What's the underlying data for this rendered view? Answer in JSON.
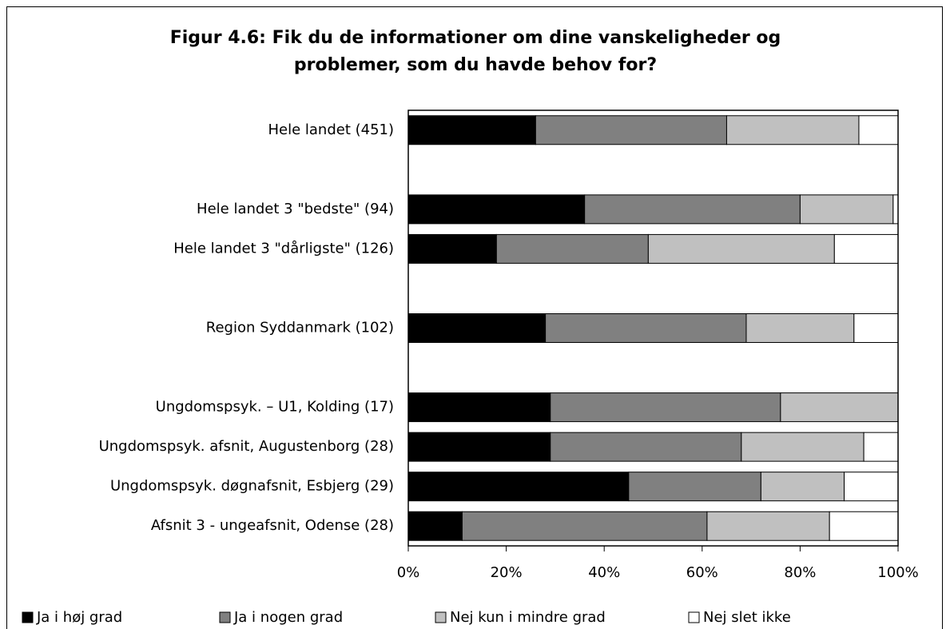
{
  "chart_data": {
    "type": "stacked-barh",
    "title": "Figur 4.6: Fik du de informationer om dine vanskeligheder og problemer, som du havde behov for?",
    "categories": [
      "Hele landet  (451)",
      null,
      "Hele landet 3 \"bedste\" (94)",
      "Hele landet 3 \"dårligste\" (126)",
      null,
      "Region Syddanmark (102)",
      null,
      "Ungdomspsyk. – U1, Kolding (17)",
      "Ungdomspsyk. afsnit, Augustenborg (28)",
      "Ungdomspsyk. døgnafsnit, Esbjerg (29)",
      "Afsnit 3 - ungeafsnit, Odense (28)"
    ],
    "series": [
      {
        "name": "Ja i høj grad",
        "color": "#000000",
        "values": [
          26,
          null,
          36,
          18,
          null,
          28,
          null,
          29,
          29,
          45,
          11
        ]
      },
      {
        "name": "Ja i nogen grad",
        "color": "#808080",
        "values": [
          39,
          null,
          44,
          31,
          null,
          41,
          null,
          47,
          39,
          27,
          50
        ]
      },
      {
        "name": "Nej kun i mindre grad",
        "color": "#c0c0c0",
        "values": [
          27,
          null,
          19,
          38,
          null,
          22,
          null,
          24,
          25,
          17,
          25
        ]
      },
      {
        "name": "Nej slet ikke",
        "color": "#ffffff",
        "values": [
          8,
          null,
          1,
          13,
          null,
          9,
          null,
          0,
          7,
          11,
          14
        ]
      }
    ],
    "xlim": [
      0,
      100
    ],
    "xticks": [
      {
        "value": 0,
        "label": "0%"
      },
      {
        "value": 20,
        "label": "20%"
      },
      {
        "value": 40,
        "label": "40%"
      },
      {
        "value": 60,
        "label": "60%"
      },
      {
        "value": 80,
        "label": "80%"
      },
      {
        "value": 100,
        "label": "100%"
      }
    ],
    "legend": "bottom"
  }
}
